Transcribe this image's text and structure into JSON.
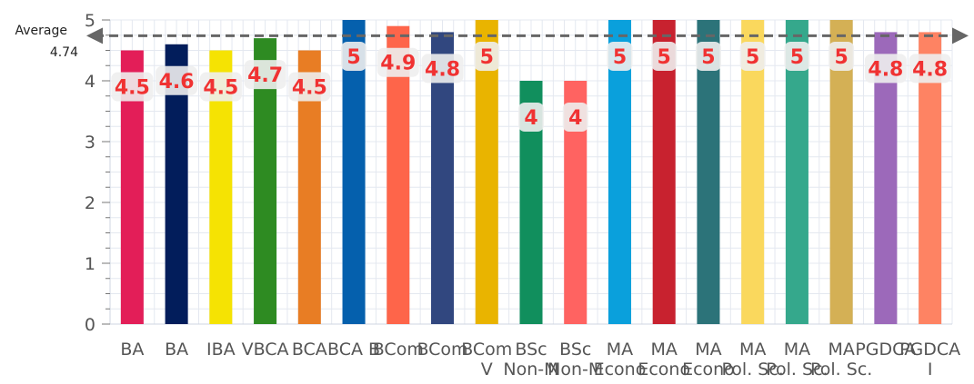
{
  "chart_data": {
    "type": "bar",
    "categories": [
      "BA",
      "BA",
      "IBA",
      "VBCA",
      "BCA",
      "BCA B",
      "BCom",
      "BCom",
      "BCom",
      "BSc",
      "BSc",
      "MA",
      "MA",
      "MA",
      "MA",
      "MA",
      "MA",
      "PGDCA",
      "PGDCA"
    ],
    "category_lines": [
      [
        "BA"
      ],
      [
        "BA"
      ],
      [
        "IBA"
      ],
      [
        "VBCA"
      ],
      [
        "BCA"
      ],
      [
        "BCA B"
      ],
      [
        "BCom"
      ],
      [
        "BCom"
      ],
      [
        "BCom",
        "V"
      ],
      [
        "BSc",
        "Non-M"
      ],
      [
        "BSc",
        "Non-M"
      ],
      [
        "MA",
        "Econo"
      ],
      [
        "MA",
        "Econo"
      ],
      [
        "MA",
        "Econo"
      ],
      [
        "MA",
        "Pol. Sc."
      ],
      [
        "MA",
        "Pol. Sc."
      ],
      [
        "MA",
        "Pol. Sc."
      ],
      [
        "PGDCA"
      ],
      [
        "PGDCA",
        "I"
      ]
    ],
    "values": [
      4.5,
      4.6,
      4.5,
      4.7,
      4.5,
      5,
      4.9,
      4.8,
      5,
      4,
      4,
      5,
      5,
      5,
      5,
      5,
      5,
      4.8,
      4.8
    ],
    "value_labels": [
      "4.5",
      "4.6",
      "4.5",
      "4.7",
      "4.5",
      "5",
      "4.9",
      "4.8",
      "5",
      "4",
      "4",
      "5",
      "5",
      "5",
      "5",
      "5",
      "5",
      "4.8",
      "4.8"
    ],
    "colors": [
      "#e31e58",
      "#021d5b",
      "#f5e303",
      "#2e8b22",
      "#e87d24",
      "#0560ad",
      "#fe654a",
      "#31477f",
      "#e9b400",
      "#118f5d",
      "#ff6361",
      "#0aa0dc",
      "#c8222f",
      "#2c7379",
      "#fad85d",
      "#35a88c",
      "#d4b055",
      "#9c69ba",
      "#fe8363"
    ],
    "ylim": [
      0,
      5
    ],
    "yticks": [
      0,
      1,
      2,
      3,
      4,
      5
    ],
    "ytick_labels": [
      "0",
      "1",
      "2",
      "3",
      "4",
      "5"
    ],
    "grid": true,
    "average": {
      "label": "Average",
      "value": 4.74,
      "value_label": "4.74"
    }
  }
}
